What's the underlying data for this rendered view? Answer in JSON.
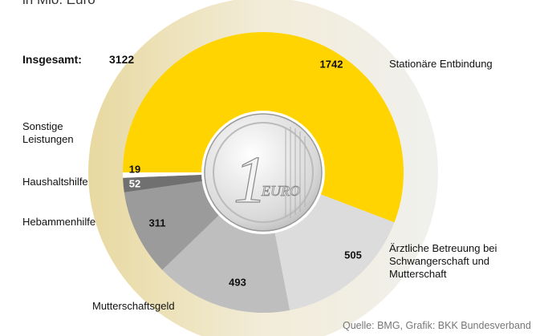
{
  "chart_data": {
    "type": "donut",
    "subtitle": "in Mio. Euro",
    "total_label": "Insgesamt:",
    "total": 3122,
    "categories": [
      "Stationäre Entbindung",
      "Ärztliche Betreuung bei Schwangerschaft und Mutterschaft",
      "Mutterschaftsgeld",
      "Hebammenhilfe",
      "Haushaltshilfe",
      "Sonstige Leistungen"
    ],
    "values": [
      1742,
      505,
      493,
      311,
      52,
      19
    ],
    "colors": [
      "#ffd400",
      "#dcdcdc",
      "#bebebe",
      "#9b9b9b",
      "#707070",
      "#ffffff"
    ],
    "coin": {
      "numeral": "1",
      "text": "EURO"
    },
    "source": "Quelle: BMG, Grafik: BKK Bundesverband"
  }
}
